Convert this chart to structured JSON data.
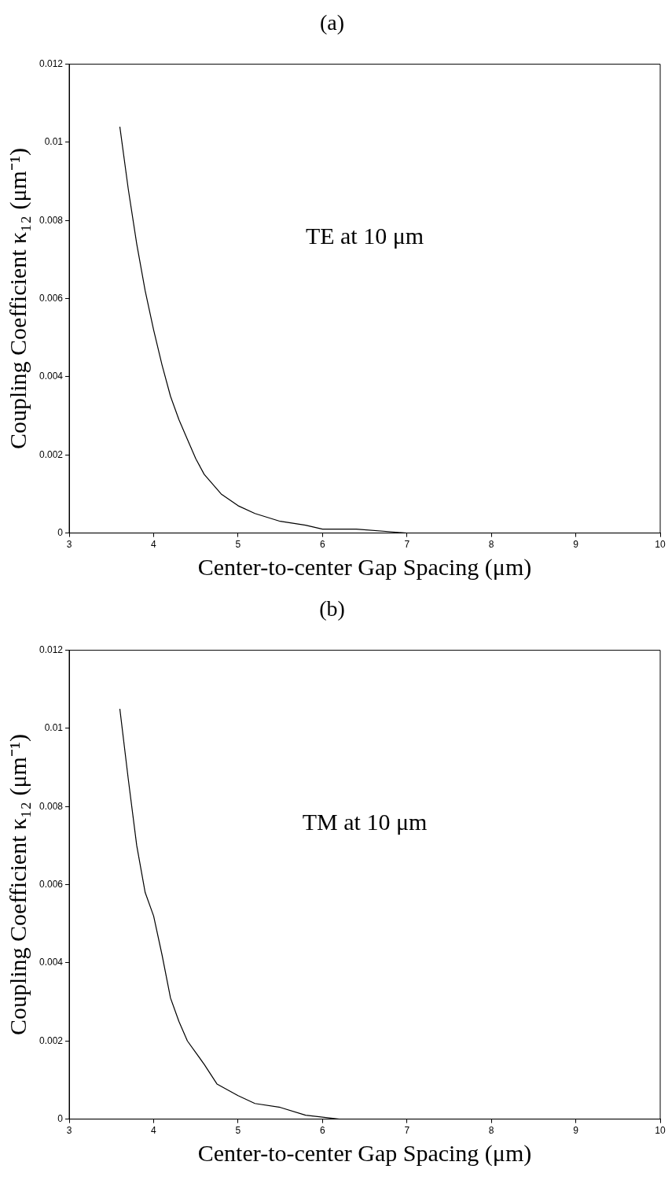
{
  "chart_data": [
    {
      "type": "line",
      "title": "(a)",
      "xlabel": "Center-to-center Gap Spacing (μm)",
      "ylabel": "Coupling Coefficient κ₁₂ (μm⁻¹)",
      "annotations": [
        "TE at 10 μm"
      ],
      "x": [
        3.6,
        3.7,
        3.8,
        3.9,
        4.0,
        4.1,
        4.2,
        4.3,
        4.4,
        4.5,
        4.6,
        4.8,
        5.0,
        5.2,
        5.5,
        5.8,
        6.0,
        6.4,
        7.0,
        8.0,
        9.25
      ],
      "series": [
        {
          "color": "#000000",
          "values": [
            0.0104,
            0.0088,
            0.0074,
            0.0062,
            0.0052,
            0.0043,
            0.0035,
            0.0029,
            0.0024,
            0.0019,
            0.0015,
            0.001,
            0.0007,
            0.0005,
            0.0003,
            0.0002,
            0.0001,
            0.0001,
            0,
            0,
            0
          ]
        }
      ],
      "xlim": [
        3,
        10
      ],
      "xticks": [
        3,
        4,
        5,
        6,
        7,
        8,
        9,
        10
      ],
      "ylim": [
        0,
        0.012
      ],
      "yticks": [
        0,
        0.002,
        0.004,
        0.006,
        0.008,
        0.01,
        0.012
      ],
      "grid": false,
      "legend": false,
      "marker": "none",
      "line_style": "solid"
    },
    {
      "type": "line",
      "title": "(b)",
      "xlabel": "Center-to-center Gap Spacing (μm)",
      "ylabel": "Coupling Coefficient κ₁₂ (μm⁻¹)",
      "annotations": [
        "TM at 10 μm"
      ],
      "x": [
        3.6,
        3.7,
        3.8,
        3.9,
        4.0,
        4.1,
        4.2,
        4.3,
        4.4,
        4.6,
        4.75,
        5.0,
        5.2,
        5.5,
        5.8,
        6.2,
        7.0,
        9.25
      ],
      "series": [
        {
          "color": "#000000",
          "values": [
            0.0105,
            0.0087,
            0.007,
            0.0058,
            0.0052,
            0.0042,
            0.0031,
            0.0025,
            0.002,
            0.0014,
            0.0009,
            0.0006,
            0.0004,
            0.0003,
            0.0001,
            0,
            0,
            0
          ]
        }
      ],
      "xlim": [
        3,
        10
      ],
      "xticks": [
        3,
        4,
        5,
        6,
        7,
        8,
        9,
        10
      ],
      "ylim": [
        0,
        0.012
      ],
      "yticks": [
        0,
        0.002,
        0.004,
        0.006,
        0.008,
        0.01,
        0.012
      ],
      "grid": false,
      "legend": false,
      "marker": "none",
      "line_style": "solid"
    }
  ]
}
